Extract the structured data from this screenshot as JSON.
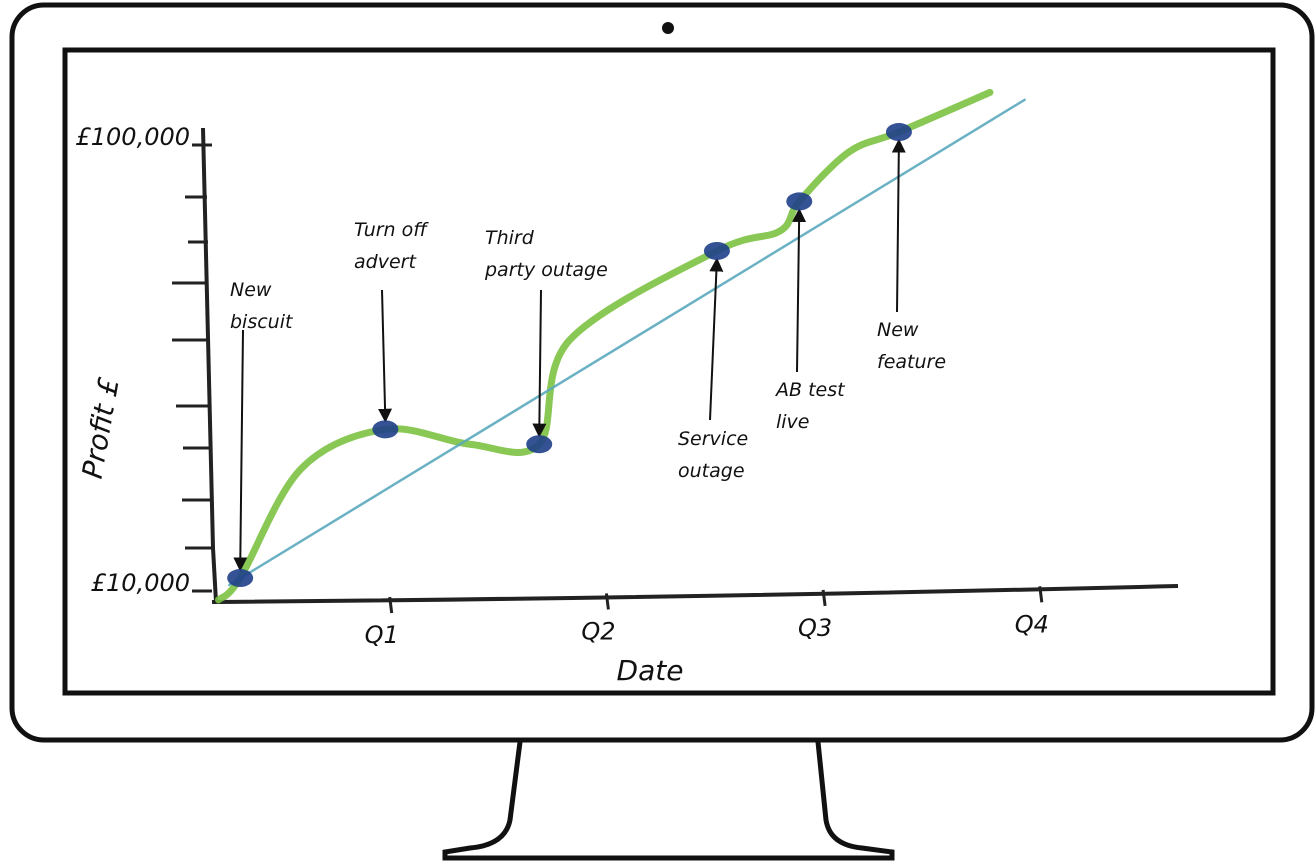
{
  "chart_data": {
    "type": "line",
    "xlabel": "Date",
    "ylabel": "Profit £",
    "xlim": [
      0.2,
      4.6
    ],
    "xticks": [
      {
        "value": 1,
        "label": "Q1"
      },
      {
        "value": 2,
        "label": "Q2"
      },
      {
        "value": 3,
        "label": "Q3"
      },
      {
        "value": 4,
        "label": "Q4"
      }
    ],
    "ylim": [
      5000,
      110000
    ],
    "yticks": [
      {
        "value": 10000,
        "label": "£10,000"
      },
      {
        "value": 100000,
        "label": "£100,000"
      }
    ],
    "series": [
      {
        "color": "#7dc242",
        "x": [
          0.21,
          0.31,
          0.59,
          0.98,
          1.37,
          1.69,
          1.83,
          2.51,
          2.8,
          2.89,
          3.12,
          3.35,
          3.77
        ],
        "values": [
          6600,
          11000,
          33000,
          41000,
          38000,
          38000,
          59000,
          77000,
          81000,
          87000,
          97000,
          101000,
          109000
        ]
      },
      {
        "color": "#5aa8bd",
        "x": [
          0.26,
          3.93
        ],
        "values": [
          9600,
          107500
        ]
      }
    ],
    "annotations": [
      {
        "lines": [
          "New",
          "biscuit"
        ],
        "x": 0.31,
        "y": 11000
      },
      {
        "lines": [
          "Turn off",
          "advert"
        ],
        "x": 0.98,
        "y": 41000
      },
      {
        "lines": [
          "Third",
          "party outage"
        ],
        "x": 1.69,
        "y": 38000
      },
      {
        "lines": [
          "Service",
          "outage"
        ],
        "x": 2.51,
        "y": 77000
      },
      {
        "lines": [
          "AB test",
          "live"
        ],
        "x": 2.89,
        "y": 87000
      },
      {
        "lines": [
          "New",
          "feature"
        ],
        "x": 3.35,
        "y": 101000
      }
    ],
    "marker_color": "#1f3f8a"
  }
}
